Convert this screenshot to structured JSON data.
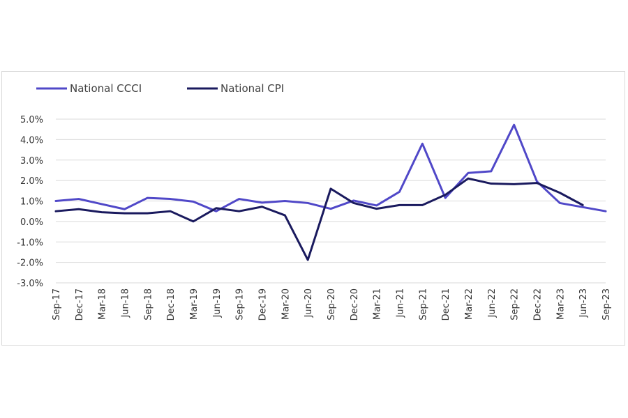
{
  "chart_data": {
    "type": "line",
    "title": "",
    "xlabel": "",
    "ylabel": "",
    "ylim": [
      -3.0,
      5.0
    ],
    "y_ticks": [
      "5.0%",
      "4.0%",
      "3.0%",
      "2.0%",
      "1.0%",
      "0.0%",
      "-1.0%",
      "-2.0%",
      "-3.0%"
    ],
    "y_tick_values": [
      5,
      4,
      3,
      2,
      1,
      0,
      -1,
      -2,
      -3
    ],
    "grid": true,
    "legend_position": "top-left",
    "categories": [
      "Sep-17",
      "Dec-17",
      "Mar-18",
      "Jun-18",
      "Sep-18",
      "Dec-18",
      "Mar-19",
      "Jun-19",
      "Sep-19",
      "Dec-19",
      "Mar-20",
      "Jun-20",
      "Sep-20",
      "Dec-20",
      "Mar-21",
      "Jun-21",
      "Sep-21",
      "Dec-21",
      "Mar-22",
      "Jun-22",
      "Sep-22",
      "Dec-22",
      "Mar-23",
      "Jun-23",
      "Sep-23"
    ],
    "series": [
      {
        "name": "National CCCI",
        "color": "#5048c8",
        "values": [
          1.0,
          1.1,
          0.85,
          0.6,
          1.15,
          1.1,
          0.97,
          0.5,
          1.1,
          0.92,
          1.0,
          0.9,
          0.62,
          1.02,
          0.78,
          1.45,
          3.8,
          1.15,
          2.37,
          2.45,
          4.72,
          1.95,
          0.9,
          0.7,
          0.5
        ]
      },
      {
        "name": "National CPI",
        "color": "#1a1a5e",
        "values": [
          0.5,
          0.6,
          0.45,
          0.4,
          0.4,
          0.5,
          0.0,
          0.65,
          0.5,
          0.72,
          0.3,
          -1.88,
          1.6,
          0.9,
          0.62,
          0.8,
          0.8,
          1.3,
          2.1,
          1.85,
          1.82,
          1.88,
          1.4,
          0.8,
          null
        ]
      }
    ]
  }
}
